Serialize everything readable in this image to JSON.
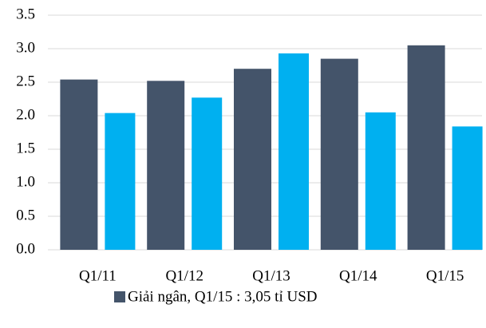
{
  "chart_data": {
    "type": "bar",
    "categories": [
      "Q1/11",
      "Q1/12",
      "Q1/13",
      "Q1/14",
      "Q1/15"
    ],
    "series": [
      {
        "name": "Giải ngân, Q1/15 : 3,05 tỉ USD",
        "color": "#44546a",
        "values": [
          2.54,
          2.52,
          2.7,
          2.85,
          3.05
        ]
      },
      {
        "color": "#00b0f0",
        "values": [
          2.04,
          2.27,
          2.93,
          2.05,
          1.84
        ]
      }
    ],
    "ylim": [
      0,
      3.5
    ],
    "yticks": [
      {
        "value": 0,
        "label": "0.0"
      },
      0.5,
      {
        "value": 1,
        "label": "1.0"
      },
      1.5,
      {
        "value": 2,
        "label": "2.0"
      },
      2.5,
      {
        "value": 3,
        "label": "3.0"
      },
      3.5
    ],
    "grid": true,
    "legend": "bottom"
  }
}
